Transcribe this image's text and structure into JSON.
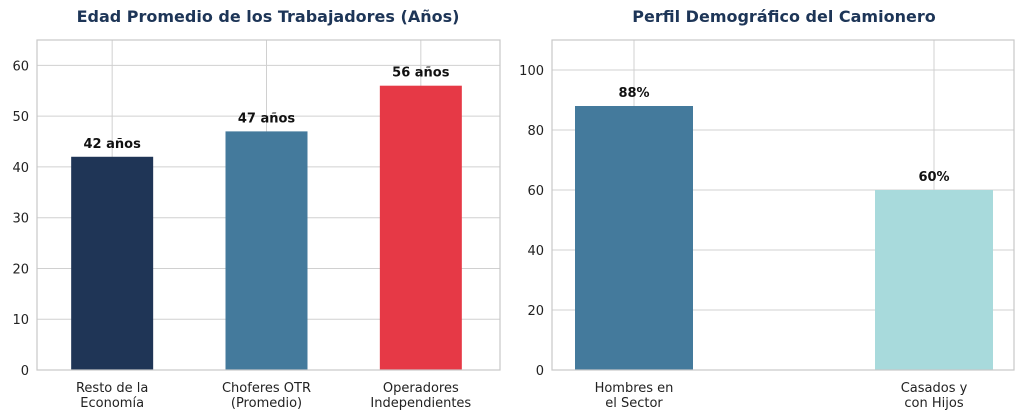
{
  "chart_data": [
    {
      "type": "bar",
      "title": "Edad Promedio de los Trabajadores (Años)",
      "categories": [
        [
          "Resto de la",
          "Economía"
        ],
        [
          "Choferes OTR",
          "(Promedio)"
        ],
        [
          "Operadores",
          "Independientes"
        ]
      ],
      "values": [
        42,
        47,
        56
      ],
      "data_labels": [
        "42 años",
        "47 años",
        "56 años"
      ],
      "colors": [
        "#1f3556",
        "#447a9c",
        "#e63946"
      ],
      "ylim": [
        0,
        65
      ],
      "yticks": [
        0,
        10,
        20,
        30,
        40,
        50,
        60
      ],
      "xlabel": "",
      "ylabel": "",
      "grid": true
    },
    {
      "type": "bar",
      "title": "Perfil Demográfico del Camionero",
      "categories": [
        [
          "Hombres en",
          "el Sector"
        ],
        [
          "Casados y",
          "con Hijos"
        ]
      ],
      "values": [
        88,
        60
      ],
      "data_labels": [
        "88%",
        "60%"
      ],
      "colors": [
        "#447a9c",
        "#a8dadc"
      ],
      "ylim": [
        0,
        110
      ],
      "yticks": [
        0,
        20,
        40,
        60,
        80,
        100
      ],
      "xlabel": "",
      "ylabel": "",
      "grid": true
    }
  ],
  "colors": {
    "title": "#1d3557",
    "grid": "#d0d0d0",
    "axis": "#c8c8c8"
  }
}
